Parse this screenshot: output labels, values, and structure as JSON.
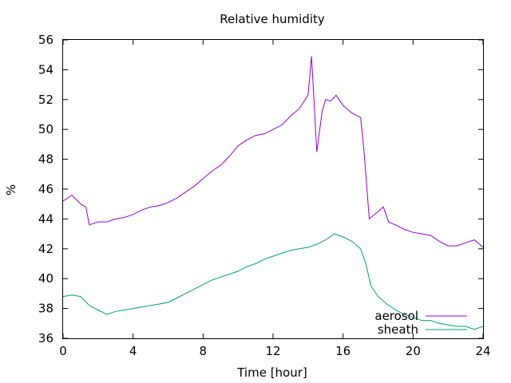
{
  "chart_data": {
    "type": "line",
    "title": "Relative humidity",
    "xlabel": "Time [hour]",
    "ylabel": "%",
    "xlim": [
      0,
      24
    ],
    "ylim": [
      36,
      56
    ],
    "xticks": [
      0,
      4,
      8,
      12,
      16,
      20,
      24
    ],
    "yticks": [
      36,
      38,
      40,
      42,
      44,
      46,
      48,
      50,
      52,
      54,
      56
    ],
    "grid": false,
    "legend_position": "bottom-right",
    "series": [
      {
        "name": "aerosol",
        "color": "#9400d3",
        "x": [
          0,
          0.5,
          1.0,
          1.3,
          1.5,
          2.0,
          2.5,
          3.0,
          3.5,
          4.0,
          4.5,
          5.0,
          5.5,
          6.0,
          6.5,
          7.0,
          7.5,
          8.0,
          8.5,
          9.0,
          9.5,
          10.0,
          10.5,
          11.0,
          11.5,
          12.0,
          12.5,
          13.0,
          13.5,
          14.0,
          14.2,
          14.5,
          14.8,
          15.0,
          15.3,
          15.6,
          16.0,
          16.5,
          17.0,
          17.2,
          17.5,
          17.8,
          18.0,
          18.3,
          18.6,
          19.0,
          19.5,
          20.0,
          20.5,
          21.0,
          21.5,
          22.0,
          22.5,
          23.0,
          23.5,
          24.0
        ],
        "y": [
          45.2,
          45.6,
          45.0,
          44.8,
          43.6,
          43.8,
          43.8,
          44.0,
          44.1,
          44.3,
          44.6,
          44.8,
          44.9,
          45.1,
          45.4,
          45.8,
          46.2,
          46.7,
          47.2,
          47.6,
          48.2,
          48.9,
          49.3,
          49.6,
          49.7,
          50.0,
          50.3,
          50.9,
          51.4,
          52.3,
          54.9,
          48.5,
          51.2,
          52.0,
          51.9,
          52.3,
          51.6,
          51.1,
          50.8,
          48.5,
          44.0,
          44.3,
          44.5,
          44.8,
          43.8,
          43.6,
          43.3,
          43.1,
          43.0,
          42.9,
          42.5,
          42.2,
          42.2,
          42.4,
          42.6,
          42.1
        ]
      },
      {
        "name": "sheath",
        "color": "#009e73",
        "x": [
          0,
          0.5,
          1.0,
          1.5,
          2.0,
          2.5,
          3.0,
          3.5,
          4.0,
          4.5,
          5.0,
          5.5,
          6.0,
          6.5,
          7.0,
          7.5,
          8.0,
          8.5,
          9.0,
          9.5,
          10.0,
          10.5,
          11.0,
          11.5,
          12.0,
          12.5,
          13.0,
          13.5,
          14.0,
          14.5,
          15.0,
          15.5,
          16.0,
          16.5,
          17.0,
          17.3,
          17.6,
          18.0,
          18.5,
          19.0,
          19.5,
          20.0,
          20.5,
          21.0,
          21.5,
          22.0,
          22.5,
          23.0,
          23.5,
          24.0
        ],
        "y": [
          38.8,
          38.9,
          38.8,
          38.2,
          37.9,
          37.6,
          37.8,
          37.9,
          38.0,
          38.1,
          38.2,
          38.3,
          38.4,
          38.7,
          39.0,
          39.3,
          39.6,
          39.9,
          40.1,
          40.3,
          40.5,
          40.8,
          41.0,
          41.3,
          41.5,
          41.7,
          41.9,
          42.0,
          42.1,
          42.3,
          42.6,
          43.0,
          42.8,
          42.5,
          42.0,
          41.0,
          39.5,
          38.8,
          38.3,
          37.9,
          37.6,
          37.4,
          37.2,
          37.2,
          37.0,
          36.9,
          36.8,
          36.8,
          36.6,
          36.8
        ]
      }
    ]
  }
}
